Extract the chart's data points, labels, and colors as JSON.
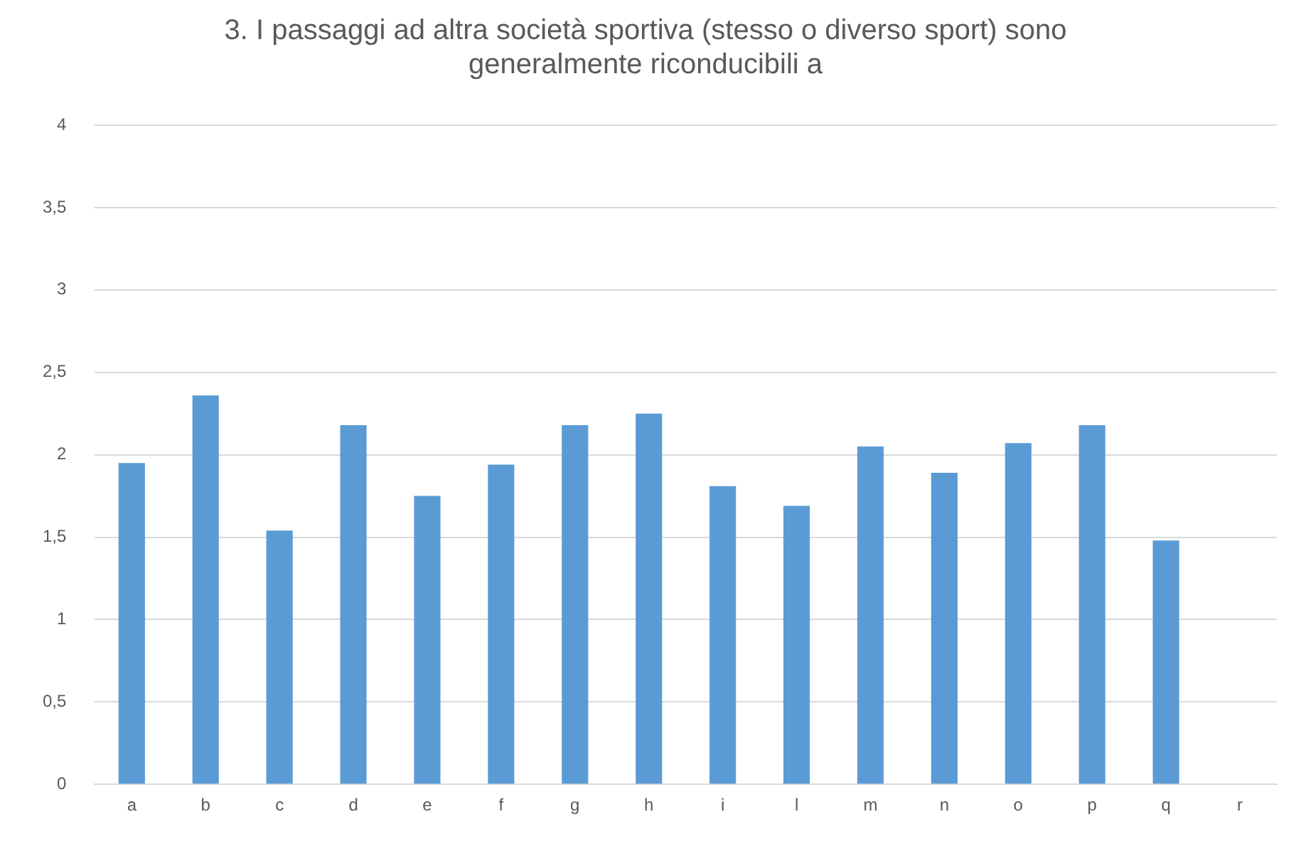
{
  "chart_data": {
    "type": "bar",
    "title": [
      "3. I passaggi ad altra società sportiva (stesso o diverso sport) sono",
      "generalmente riconducibili a"
    ],
    "categories": [
      "a",
      "b",
      "c",
      "d",
      "e",
      "f",
      "g",
      "h",
      "i",
      "l",
      "m",
      "n",
      "o",
      "p",
      "q",
      "r"
    ],
    "values": [
      1.95,
      2.36,
      1.54,
      2.18,
      1.75,
      1.94,
      2.18,
      2.25,
      1.81,
      1.69,
      2.05,
      1.89,
      2.07,
      2.18,
      1.48,
      null
    ],
    "color": "#5b9bd5",
    "ylim": [
      0,
      4
    ],
    "yticks": [
      0,
      {
        "value": 0.5,
        "label": "0,5"
      },
      1,
      {
        "value": 1.5,
        "label": "1,5"
      },
      2,
      {
        "value": 2.5,
        "label": "2,5"
      },
      3,
      {
        "value": 3.5,
        "label": "3,5"
      },
      4
    ],
    "grid": "y",
    "legend": false
  }
}
